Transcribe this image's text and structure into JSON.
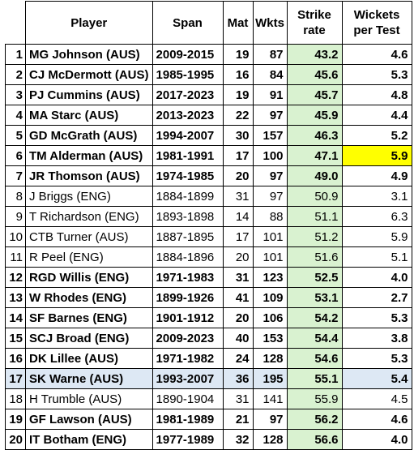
{
  "headers": {
    "player": "Player",
    "span": "Span",
    "mat": "Mat",
    "wkts": "Wkts",
    "strike_rate": "Strike rate",
    "wickets_per_test": "Wickets per Test"
  },
  "rows": [
    {
      "rank": "1",
      "player": "MG Johnson (AUS)",
      "span": "2009-2015",
      "mat": "19",
      "wkts": "87",
      "sr": "43.2",
      "wpt": "4.6"
    },
    {
      "rank": "2",
      "player": "CJ McDermott (AUS)",
      "span": "1985-1995",
      "mat": "16",
      "wkts": "84",
      "sr": "45.6",
      "wpt": "5.3"
    },
    {
      "rank": "3",
      "player": "PJ Cummins (AUS)",
      "span": "2017-2023",
      "mat": "19",
      "wkts": "91",
      "sr": "45.7",
      "wpt": "4.8"
    },
    {
      "rank": "4",
      "player": "MA Starc (AUS)",
      "span": "2013-2023",
      "mat": "22",
      "wkts": "97",
      "sr": "45.9",
      "wpt": "4.4"
    },
    {
      "rank": "5",
      "player": "GD McGrath (AUS)",
      "span": "1994-2007",
      "mat": "30",
      "wkts": "157",
      "sr": "46.3",
      "wpt": "5.2"
    },
    {
      "rank": "6",
      "player": "TM Alderman (AUS)",
      "span": "1981-1991",
      "mat": "17",
      "wkts": "100",
      "sr": "47.1",
      "wpt": "5.9"
    },
    {
      "rank": "7",
      "player": "JR Thomson (AUS)",
      "span": "1974-1985",
      "mat": "20",
      "wkts": "97",
      "sr": "49.0",
      "wpt": "4.9"
    },
    {
      "rank": "8",
      "player": "J Briggs (ENG)",
      "span": "1884-1899",
      "mat": "31",
      "wkts": "97",
      "sr": "50.9",
      "wpt": "3.1"
    },
    {
      "rank": "9",
      "player": "T Richardson (ENG)",
      "span": "1893-1898",
      "mat": "14",
      "wkts": "88",
      "sr": "51.1",
      "wpt": "6.3"
    },
    {
      "rank": "10",
      "player": "CTB Turner (AUS)",
      "span": "1887-1895",
      "mat": "17",
      "wkts": "101",
      "sr": "51.2",
      "wpt": "5.9"
    },
    {
      "rank": "11",
      "player": "R Peel (ENG)",
      "span": "1884-1896",
      "mat": "20",
      "wkts": "101",
      "sr": "51.6",
      "wpt": "5.1"
    },
    {
      "rank": "12",
      "player": "RGD Willis (ENG)",
      "span": "1971-1983",
      "mat": "31",
      "wkts": "123",
      "sr": "52.5",
      "wpt": "4.0"
    },
    {
      "rank": "13",
      "player": "W Rhodes (ENG)",
      "span": "1899-1926",
      "mat": "41",
      "wkts": "109",
      "sr": "53.1",
      "wpt": "2.7"
    },
    {
      "rank": "14",
      "player": "SF Barnes (ENG)",
      "span": "1901-1912",
      "mat": "20",
      "wkts": "106",
      "sr": "54.2",
      "wpt": "5.3"
    },
    {
      "rank": "15",
      "player": "SCJ Broad (ENG)",
      "span": "2009-2023",
      "mat": "40",
      "wkts": "153",
      "sr": "54.4",
      "wpt": "3.8"
    },
    {
      "rank": "16",
      "player": "DK Lillee (AUS)",
      "span": "1971-1982",
      "mat": "24",
      "wkts": "128",
      "sr": "54.6",
      "wpt": "5.3"
    },
    {
      "rank": "17",
      "player": "SK Warne (AUS)",
      "span": "1993-2007",
      "mat": "36",
      "wkts": "195",
      "sr": "55.1",
      "wpt": "5.4"
    },
    {
      "rank": "18",
      "player": "H Trumble (AUS)",
      "span": "1890-1904",
      "mat": "31",
      "wkts": "141",
      "sr": "55.9",
      "wpt": "4.5"
    },
    {
      "rank": "19",
      "player": "GF Lawson (AUS)",
      "span": "1981-1989",
      "mat": "21",
      "wkts": "97",
      "sr": "56.2",
      "wpt": "4.6"
    },
    {
      "rank": "20",
      "player": "IT Botham (ENG)",
      "span": "1977-1989",
      "mat": "32",
      "wkts": "128",
      "sr": "56.6",
      "wpt": "4.0"
    }
  ],
  "colors": {
    "strike_rate_fill": "#d9f2d0",
    "highlight_row_fill": "#dde8f4",
    "max_cell_fill": "#ffff00"
  }
}
